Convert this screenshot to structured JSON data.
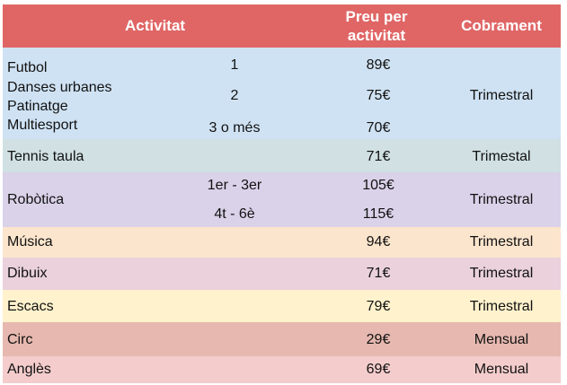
{
  "header": {
    "activity": "Activitat",
    "price": [
      "Preu per",
      "activitat"
    ],
    "billing": "Cobrament"
  },
  "colors": {
    "header": "#e06666",
    "sports": "#cfe2f3",
    "tennis": "#d0e0e3",
    "robotics": "#d9d2e9",
    "music": "#fce5cd",
    "drawing": "#ead1dc",
    "chess": "#fff2cc",
    "circus": "#e6b8af",
    "english": "#f4cccc"
  },
  "sports": {
    "activities": [
      "Futbol",
      "Danses urbanes",
      "Patinatge",
      "Multiesport"
    ],
    "tiers": [
      "1",
      "2",
      "3 o més"
    ],
    "prices": [
      "89€",
      "75€",
      "70€"
    ],
    "billing": "Trimestral"
  },
  "tennis": {
    "activity": "Tennis taula",
    "price": "71€",
    "billing": "Trimestal"
  },
  "robotics": {
    "activity": "Robòtica",
    "tiers": [
      "1er - 3er",
      "4t - 6è"
    ],
    "prices": [
      "105€",
      "115€"
    ],
    "billing": "Trimestral"
  },
  "rows": [
    {
      "activity": "Música",
      "price": "94€",
      "billing": "Trimestral"
    },
    {
      "activity": "Dibuix",
      "price": "71€",
      "billing": "Trimestral"
    },
    {
      "activity": "Escacs",
      "price": "79€",
      "billing": "Trimestral"
    },
    {
      "activity": "Circ",
      "price": "29€",
      "billing": "Mensual"
    },
    {
      "activity": "Anglès",
      "price": "69€",
      "billing": "Mensual"
    }
  ]
}
